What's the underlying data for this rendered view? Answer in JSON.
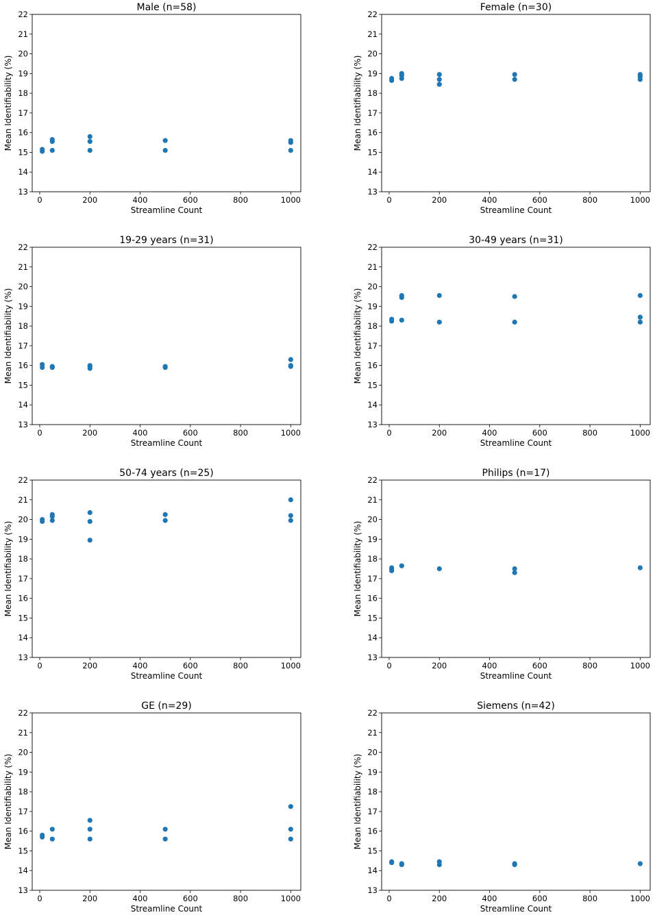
{
  "figure": {
    "panel_count": 8,
    "marker_color": "#1f77b4"
  },
  "chart_data": [
    {
      "type": "scatter",
      "title": "Male (n=58)",
      "xlabel": "Streamline Count",
      "ylabel": "Mean Identifiability (%)",
      "xlim": [
        -30,
        1040
      ],
      "ylim": [
        13,
        22
      ],
      "xticks": [
        0,
        200,
        400,
        600,
        800,
        1000
      ],
      "yticks": [
        13,
        14,
        15,
        16,
        17,
        18,
        19,
        20,
        21,
        22
      ],
      "points": [
        [
          10,
          15.05
        ],
        [
          10,
          15.15
        ],
        [
          50,
          15.1
        ],
        [
          50,
          15.55
        ],
        [
          50,
          15.65
        ],
        [
          200,
          15.1
        ],
        [
          200,
          15.55
        ],
        [
          200,
          15.8
        ],
        [
          500,
          15.1
        ],
        [
          500,
          15.6
        ],
        [
          1000,
          15.1
        ],
        [
          1000,
          15.5
        ],
        [
          1000,
          15.6
        ]
      ]
    },
    {
      "type": "scatter",
      "title": "Female (n=30)",
      "xlabel": "Streamline Count",
      "ylabel": "Mean Identifiability (%)",
      "xlim": [
        -30,
        1040
      ],
      "ylim": [
        13,
        22
      ],
      "xticks": [
        0,
        200,
        400,
        600,
        800,
        1000
      ],
      "yticks": [
        13,
        14,
        15,
        16,
        17,
        18,
        19,
        20,
        21,
        22
      ],
      "points": [
        [
          10,
          18.65
        ],
        [
          10,
          18.75
        ],
        [
          50,
          18.75
        ],
        [
          50,
          18.9
        ],
        [
          50,
          19.0
        ],
        [
          200,
          18.45
        ],
        [
          200,
          18.7
        ],
        [
          200,
          18.95
        ],
        [
          500,
          18.7
        ],
        [
          500,
          18.95
        ],
        [
          1000,
          18.7
        ],
        [
          1000,
          18.85
        ],
        [
          1000,
          18.95
        ]
      ]
    },
    {
      "type": "scatter",
      "title": "19-29 years (n=31)",
      "xlabel": "Streamline Count",
      "ylabel": "Mean Identifiability (%)",
      "xlim": [
        -30,
        1040
      ],
      "ylim": [
        13,
        22
      ],
      "xticks": [
        0,
        200,
        400,
        600,
        800,
        1000
      ],
      "yticks": [
        13,
        14,
        15,
        16,
        17,
        18,
        19,
        20,
        21,
        22
      ],
      "points": [
        [
          10,
          15.9
        ],
        [
          10,
          16.05
        ],
        [
          50,
          15.9
        ],
        [
          50,
          15.95
        ],
        [
          200,
          15.85
        ],
        [
          200,
          15.95
        ],
        [
          200,
          16.0
        ],
        [
          500,
          15.9
        ],
        [
          500,
          15.95
        ],
        [
          1000,
          15.95
        ],
        [
          1000,
          16.0
        ],
        [
          1000,
          16.3
        ]
      ]
    },
    {
      "type": "scatter",
      "title": "30-49 years (n=31)",
      "xlabel": "Streamline Count",
      "ylabel": "Mean Identifiability (%)",
      "xlim": [
        -30,
        1040
      ],
      "ylim": [
        13,
        22
      ],
      "xticks": [
        0,
        200,
        400,
        600,
        800,
        1000
      ],
      "yticks": [
        13,
        14,
        15,
        16,
        17,
        18,
        19,
        20,
        21,
        22
      ],
      "points": [
        [
          10,
          18.25
        ],
        [
          10,
          18.35
        ],
        [
          50,
          18.3
        ],
        [
          50,
          19.45
        ],
        [
          50,
          19.55
        ],
        [
          200,
          18.2
        ],
        [
          200,
          19.55
        ],
        [
          500,
          18.2
        ],
        [
          500,
          19.5
        ],
        [
          1000,
          18.2
        ],
        [
          1000,
          18.45
        ],
        [
          1000,
          19.55
        ]
      ]
    },
    {
      "type": "scatter",
      "title": "50-74 years (n=25)",
      "xlabel": "Streamline Count",
      "ylabel": "Mean Identifiability (%)",
      "xlim": [
        -30,
        1040
      ],
      "ylim": [
        13,
        22
      ],
      "xticks": [
        0,
        200,
        400,
        600,
        800,
        1000
      ],
      "yticks": [
        13,
        14,
        15,
        16,
        17,
        18,
        19,
        20,
        21,
        22
      ],
      "points": [
        [
          10,
          19.9
        ],
        [
          10,
          20.0
        ],
        [
          50,
          19.95
        ],
        [
          50,
          20.15
        ],
        [
          50,
          20.25
        ],
        [
          200,
          18.95
        ],
        [
          200,
          19.9
        ],
        [
          200,
          20.35
        ],
        [
          500,
          19.95
        ],
        [
          500,
          20.25
        ],
        [
          1000,
          19.95
        ],
        [
          1000,
          20.2
        ],
        [
          1000,
          21.0
        ]
      ]
    },
    {
      "type": "scatter",
      "title": "Philips (n=17)",
      "xlabel": "Streamline Count",
      "ylabel": "Mean Identifiability (%)",
      "xlim": [
        -30,
        1040
      ],
      "ylim": [
        13,
        22
      ],
      "xticks": [
        0,
        200,
        400,
        600,
        800,
        1000
      ],
      "yticks": [
        13,
        14,
        15,
        16,
        17,
        18,
        19,
        20,
        21,
        22
      ],
      "points": [
        [
          10,
          17.4
        ],
        [
          10,
          17.5
        ],
        [
          10,
          17.55
        ],
        [
          50,
          17.65
        ],
        [
          200,
          17.5
        ],
        [
          500,
          17.3
        ],
        [
          500,
          17.5
        ],
        [
          1000,
          17.55
        ]
      ]
    },
    {
      "type": "scatter",
      "title": "GE (n=29)",
      "xlabel": "Streamline Count",
      "ylabel": "Mean Identifiability (%)",
      "xlim": [
        -30,
        1040
      ],
      "ylim": [
        13,
        22
      ],
      "xticks": [
        0,
        200,
        400,
        600,
        800,
        1000
      ],
      "yticks": [
        13,
        14,
        15,
        16,
        17,
        18,
        19,
        20,
        21,
        22
      ],
      "points": [
        [
          10,
          15.7
        ],
        [
          10,
          15.8
        ],
        [
          50,
          15.6
        ],
        [
          50,
          16.1
        ],
        [
          200,
          15.6
        ],
        [
          200,
          16.1
        ],
        [
          200,
          16.55
        ],
        [
          500,
          15.6
        ],
        [
          500,
          16.1
        ],
        [
          1000,
          15.6
        ],
        [
          1000,
          16.1
        ],
        [
          1000,
          17.25
        ]
      ]
    },
    {
      "type": "scatter",
      "title": "Siemens (n=42)",
      "xlabel": "Streamline Count",
      "ylabel": "Mean Identifiability (%)",
      "xlim": [
        -30,
        1040
      ],
      "ylim": [
        13,
        22
      ],
      "xticks": [
        0,
        200,
        400,
        600,
        800,
        1000
      ],
      "yticks": [
        13,
        14,
        15,
        16,
        17,
        18,
        19,
        20,
        21,
        22
      ],
      "points": [
        [
          10,
          14.4
        ],
        [
          10,
          14.45
        ],
        [
          50,
          14.3
        ],
        [
          50,
          14.35
        ],
        [
          200,
          14.3
        ],
        [
          200,
          14.45
        ],
        [
          500,
          14.3
        ],
        [
          500,
          14.35
        ],
        [
          1000,
          14.35
        ]
      ]
    }
  ]
}
